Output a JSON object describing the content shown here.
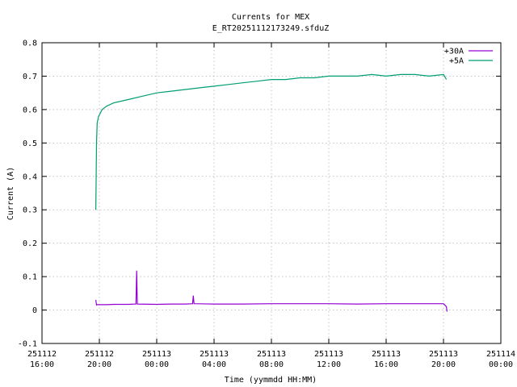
{
  "chart_data": {
    "type": "line",
    "title": "Currents for MEX",
    "subtitle": "E_RT20251112173249.sfduZ",
    "xlabel": "Time (yymmdd HH:MM)",
    "ylabel": "Current (A)",
    "ylim": [
      -0.1,
      0.8
    ],
    "yticks": [
      -0.1,
      0,
      0.1,
      0.2,
      0.3,
      0.4,
      0.5,
      0.6,
      0.7,
      0.8
    ],
    "ytick_labels": [
      "-0.1",
      "0",
      "0.1",
      "0.2",
      "0.3",
      "0.4",
      "0.5",
      "0.6",
      "0.7",
      "0.8"
    ],
    "x_unit": "hours",
    "xlim": [
      16,
      48
    ],
    "xticks": [
      16,
      20,
      24,
      28,
      32,
      36,
      40,
      44,
      48
    ],
    "xtick_labels": [
      [
        "251112",
        "16:00"
      ],
      [
        "251112",
        "20:00"
      ],
      [
        "251113",
        "00:00"
      ],
      [
        "251113",
        "04:00"
      ],
      [
        "251113",
        "08:00"
      ],
      [
        "251113",
        "12:00"
      ],
      [
        "251113",
        "16:00"
      ],
      [
        "251113",
        "20:00"
      ],
      [
        "251114",
        "00:00"
      ]
    ],
    "grid": true,
    "legend_position": "top-right",
    "series": [
      {
        "name": "+30A",
        "color": "#9400d3",
        "x": [
          19.75,
          19.8,
          19.85,
          20.5,
          21,
          22,
          22.55,
          22.6,
          22.65,
          24,
          25,
          26,
          26.5,
          26.55,
          26.6,
          28,
          30,
          32,
          34,
          36,
          38,
          40,
          42,
          44,
          44.2,
          44.25
        ],
        "y": [
          0.03,
          0.015,
          0.016,
          0.016,
          0.017,
          0.017,
          0.018,
          0.118,
          0.018,
          0.017,
          0.018,
          0.018,
          0.019,
          0.043,
          0.019,
          0.018,
          0.018,
          0.019,
          0.019,
          0.019,
          0.018,
          0.019,
          0.019,
          0.019,
          0.01,
          -0.005
        ]
      },
      {
        "name": "+5A",
        "color": "#009e73",
        "x": [
          19.75,
          19.8,
          19.85,
          19.95,
          20.2,
          20.5,
          21,
          22,
          23,
          24,
          25,
          26,
          27,
          28,
          29,
          30,
          31,
          32,
          33,
          34,
          35,
          36,
          37,
          38,
          39,
          40,
          41,
          42,
          43,
          44,
          44.2
        ],
        "y": [
          0.3,
          0.5,
          0.56,
          0.58,
          0.6,
          0.61,
          0.62,
          0.63,
          0.64,
          0.65,
          0.655,
          0.66,
          0.665,
          0.67,
          0.675,
          0.68,
          0.685,
          0.69,
          0.69,
          0.695,
          0.695,
          0.7,
          0.7,
          0.7,
          0.705,
          0.7,
          0.705,
          0.705,
          0.7,
          0.705,
          0.69
        ]
      }
    ]
  }
}
